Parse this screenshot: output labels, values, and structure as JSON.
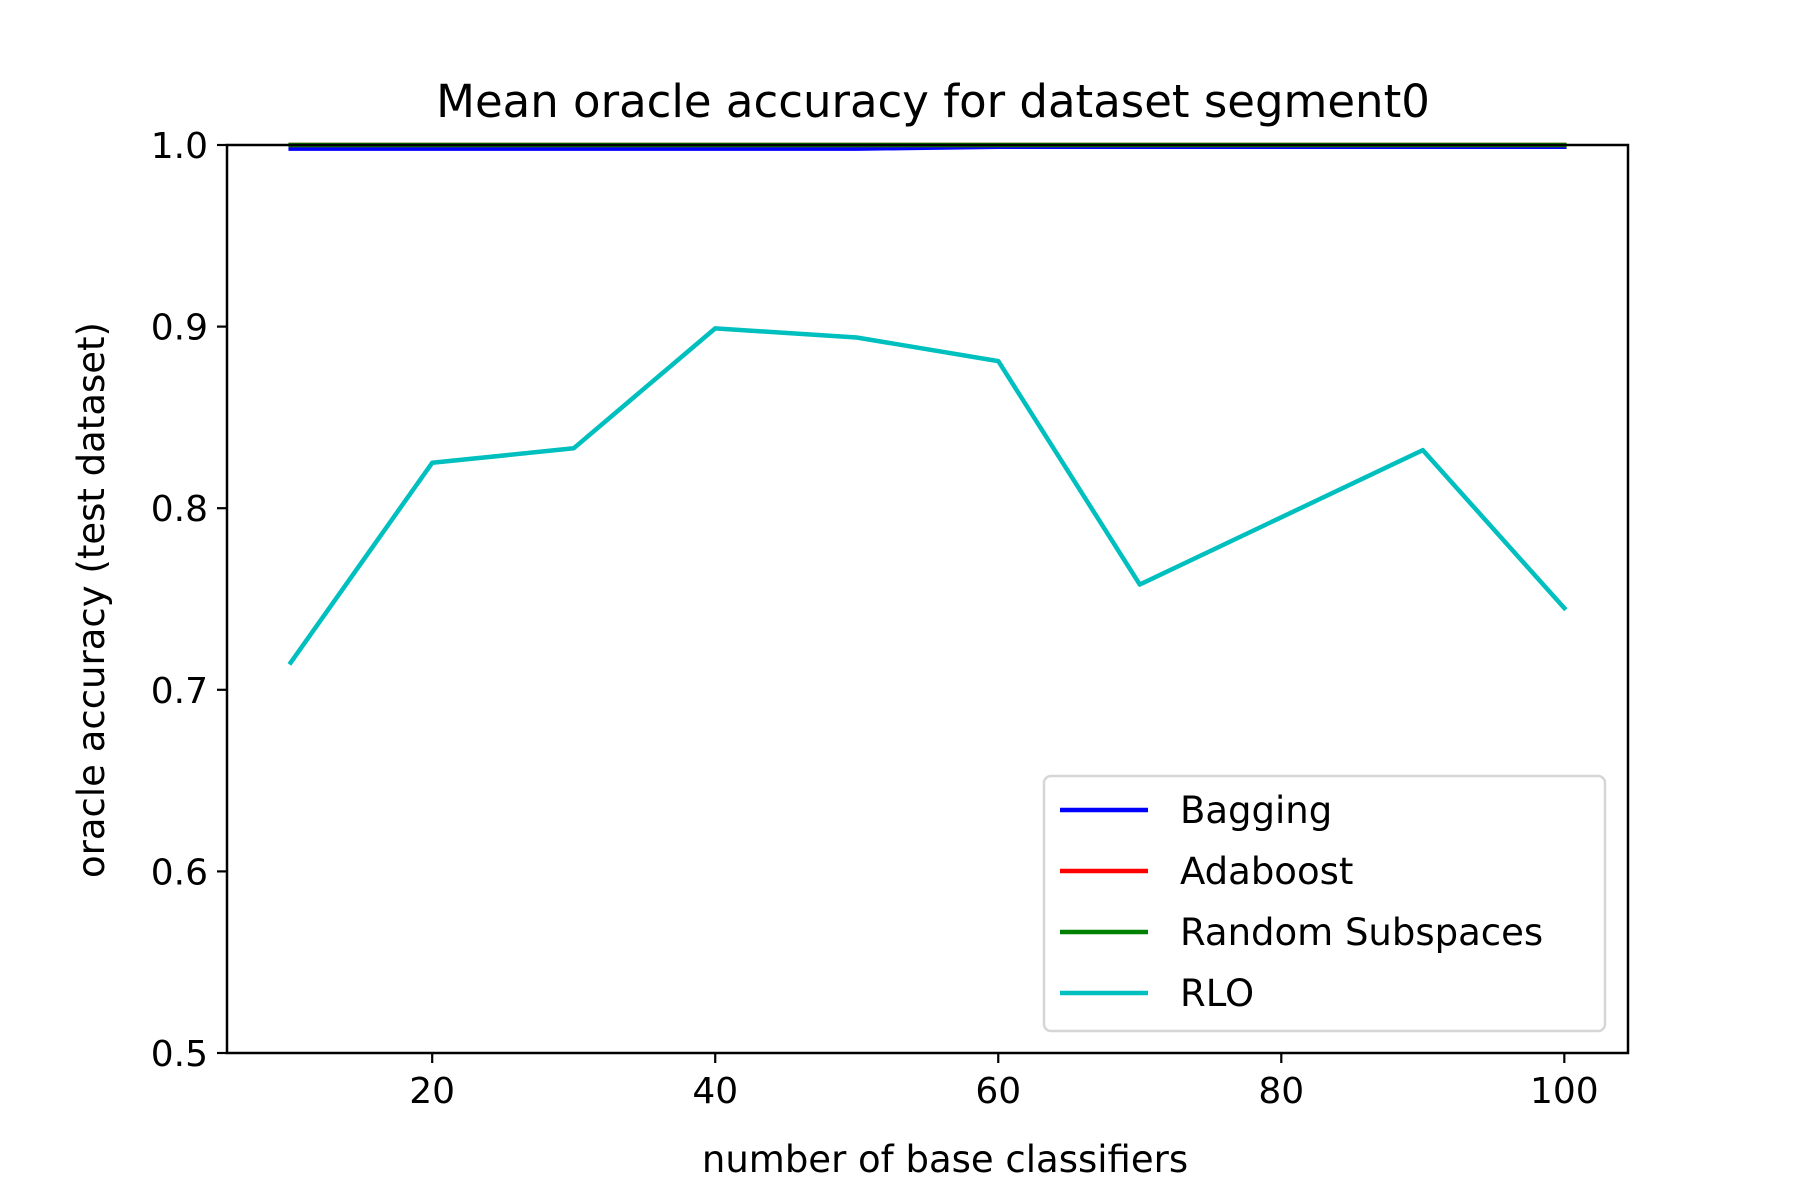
{
  "chart_data": {
    "type": "line",
    "title": "Mean oracle accuracy for dataset segment0",
    "xlabel": "number of base classifiers",
    "ylabel": "oracle accuracy (test dataset)",
    "xlim": [
      5.5,
      104.5
    ],
    "ylim": [
      0.5,
      1.0
    ],
    "xticks": [
      20,
      40,
      60,
      80,
      100
    ],
    "yticks": [
      0.5,
      0.6,
      0.7,
      0.8,
      0.9,
      1.0
    ],
    "x": [
      10,
      20,
      30,
      40,
      50,
      60,
      70,
      80,
      90,
      100
    ],
    "series": [
      {
        "name": "Bagging",
        "color": "#0000ff",
        "values": [
          0.998,
          0.998,
          0.998,
          0.998,
          0.998,
          0.999,
          0.999,
          0.999,
          0.999,
          0.999
        ]
      },
      {
        "name": "Adaboost",
        "color": "#ff0000",
        "values": [
          1.0,
          1.0,
          1.0,
          1.0,
          1.0,
          1.0,
          1.0,
          1.0,
          1.0,
          1.0
        ]
      },
      {
        "name": "Random Subspaces",
        "color": "#008000",
        "values": [
          1.0,
          1.0,
          1.0,
          1.0,
          1.0,
          1.0,
          1.0,
          1.0,
          1.0,
          1.0
        ]
      },
      {
        "name": "RLO",
        "color": "#00bfbf",
        "values": [
          0.715,
          0.825,
          0.833,
          0.899,
          0.894,
          0.881,
          0.758,
          0.795,
          0.832,
          0.745
        ]
      }
    ],
    "grid": false,
    "legend_position": "lower-right"
  }
}
